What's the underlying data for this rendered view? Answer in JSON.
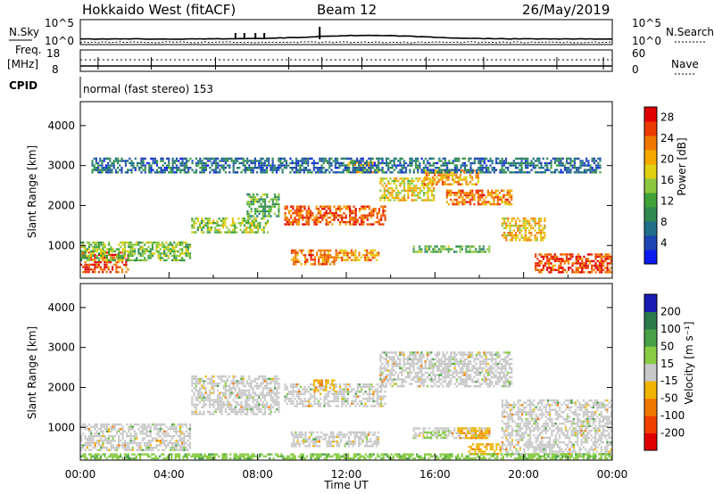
{
  "header": {
    "station": "Hokkaido West (fitACF)",
    "beam": "Beam 12",
    "date": "26/May/2019"
  },
  "top_panels": {
    "nsky_label": "N.Sky",
    "nsky_ticks": [
      "10^5",
      "10^0"
    ],
    "nsearch_label": "N.Search",
    "freq_label_line1": "Freq.",
    "freq_label_line2": "[MHz]",
    "freq_ticks": [
      "18",
      "8"
    ],
    "nave_ticks": [
      "60",
      "0"
    ],
    "nave_label": "Nave",
    "cpid_label": "CPID",
    "cpid_value": "normal (fast stereo) 153"
  },
  "chart_data": [
    {
      "type": "heatmap",
      "name": "power",
      "ylabel": "Slant Range [km]",
      "xlabel": "",
      "x_ticks": [
        "00:00",
        "04:00",
        "08:00",
        "12:00",
        "16:00",
        "20:00",
        "00:00"
      ],
      "x_range_hours": [
        0,
        24
      ],
      "y_ticks": [
        1000,
        2000,
        3000,
        4000
      ],
      "ylim": [
        180,
        4600
      ],
      "colorbar": {
        "label": "Power [dB]",
        "ticks": [
          "4",
          "8",
          "12",
          "16",
          "20",
          "24",
          "28"
        ],
        "range": [
          0,
          30
        ],
        "colors": [
          "#0a1cf0",
          "#1e46b4",
          "#1f6f8b",
          "#2f8a52",
          "#3fa33a",
          "#8cc63f",
          "#e0d010",
          "#f5a800",
          "#f07800",
          "#ec3a00",
          "#e00000"
        ]
      },
      "regions": [
        {
          "t": [
            0.0,
            2.2
          ],
          "r": [
            300,
            850
          ],
          "level": 27
        },
        {
          "t": [
            0.0,
            5.0
          ],
          "r": [
            600,
            1100
          ],
          "level": 14
        },
        {
          "t": [
            5.0,
            8.5
          ],
          "r": [
            1300,
            1700
          ],
          "level": 15
        },
        {
          "t": [
            7.5,
            9.0
          ],
          "r": [
            1700,
            2300
          ],
          "level": 12
        },
        {
          "t": [
            9.2,
            13.8
          ],
          "r": [
            1500,
            2000
          ],
          "level": 25
        },
        {
          "t": [
            9.5,
            11.5
          ],
          "r": [
            500,
            900
          ],
          "level": 24
        },
        {
          "t": [
            11.5,
            13.5
          ],
          "r": [
            600,
            900
          ],
          "level": 22
        },
        {
          "t": [
            12.0,
            13.5
          ],
          "r": [
            2800,
            3100
          ],
          "level": 20
        },
        {
          "t": [
            13.5,
            16.0
          ],
          "r": [
            2100,
            2700
          ],
          "level": 18
        },
        {
          "t": [
            15.5,
            18.0
          ],
          "r": [
            2500,
            2900
          ],
          "level": 22
        },
        {
          "t": [
            16.5,
            19.5
          ],
          "r": [
            2000,
            2400
          ],
          "level": 24
        },
        {
          "t": [
            15.0,
            18.5
          ],
          "r": [
            800,
            1000
          ],
          "level": 12
        },
        {
          "t": [
            19.0,
            21.0
          ],
          "r": [
            1100,
            1700
          ],
          "level": 20
        },
        {
          "t": [
            20.5,
            24.0
          ],
          "r": [
            300,
            800
          ],
          "level": 27
        },
        {
          "t": [
            0.5,
            23.5
          ],
          "r": [
            2800,
            3200
          ],
          "level": 6
        }
      ]
    },
    {
      "type": "heatmap",
      "name": "velocity",
      "ylabel": "Slant Range [km]",
      "xlabel": "Time UT",
      "x_ticks": [
        "00:00",
        "04:00",
        "08:00",
        "12:00",
        "16:00",
        "20:00",
        "00:00"
      ],
      "x_range_hours": [
        0,
        24
      ],
      "y_ticks": [
        1000,
        2000,
        3000,
        4000
      ],
      "ylim": [
        180,
        4600
      ],
      "colorbar": {
        "label": "Velocity [m s⁻¹]",
        "ticks": [
          "200",
          "100",
          "50",
          "15",
          "-15",
          "-50",
          "-100",
          "-200"
        ],
        "colors": [
          "#1a1ab4",
          "#2a7a4a",
          "#46a046",
          "#88cc44",
          "#c8c8c8",
          "#f0b400",
          "#f07800",
          "#f04000",
          "#e00000"
        ]
      },
      "regions": [
        {
          "t": [
            0.0,
            5.0
          ],
          "r": [
            400,
            1100
          ],
          "level": 0
        },
        {
          "t": [
            5.0,
            9.0
          ],
          "r": [
            1300,
            2300
          ],
          "level": 0
        },
        {
          "t": [
            9.2,
            13.8
          ],
          "r": [
            1500,
            2100
          ],
          "level": 0
        },
        {
          "t": [
            10.5,
            11.5
          ],
          "r": [
            1900,
            2200
          ],
          "level": -40
        },
        {
          "t": [
            13.5,
            19.5
          ],
          "r": [
            2000,
            2900
          ],
          "level": 0
        },
        {
          "t": [
            15.0,
            18.5
          ],
          "r": [
            700,
            1000
          ],
          "level": 0
        },
        {
          "t": [
            15.5,
            16.5
          ],
          "r": [
            700,
            900
          ],
          "level": 30
        },
        {
          "t": [
            17.0,
            18.5
          ],
          "r": [
            700,
            1000
          ],
          "level": -40
        },
        {
          "t": [
            17.5,
            19.0
          ],
          "r": [
            300,
            600
          ],
          "level": -40
        },
        {
          "t": [
            19.0,
            24.0
          ],
          "r": [
            300,
            1700
          ],
          "level": 0
        },
        {
          "t": [
            0.0,
            24.0
          ],
          "r": [
            200,
            350
          ],
          "level": 40
        },
        {
          "t": [
            9.5,
            13.5
          ],
          "r": [
            500,
            900
          ],
          "level": 0
        }
      ]
    }
  ]
}
